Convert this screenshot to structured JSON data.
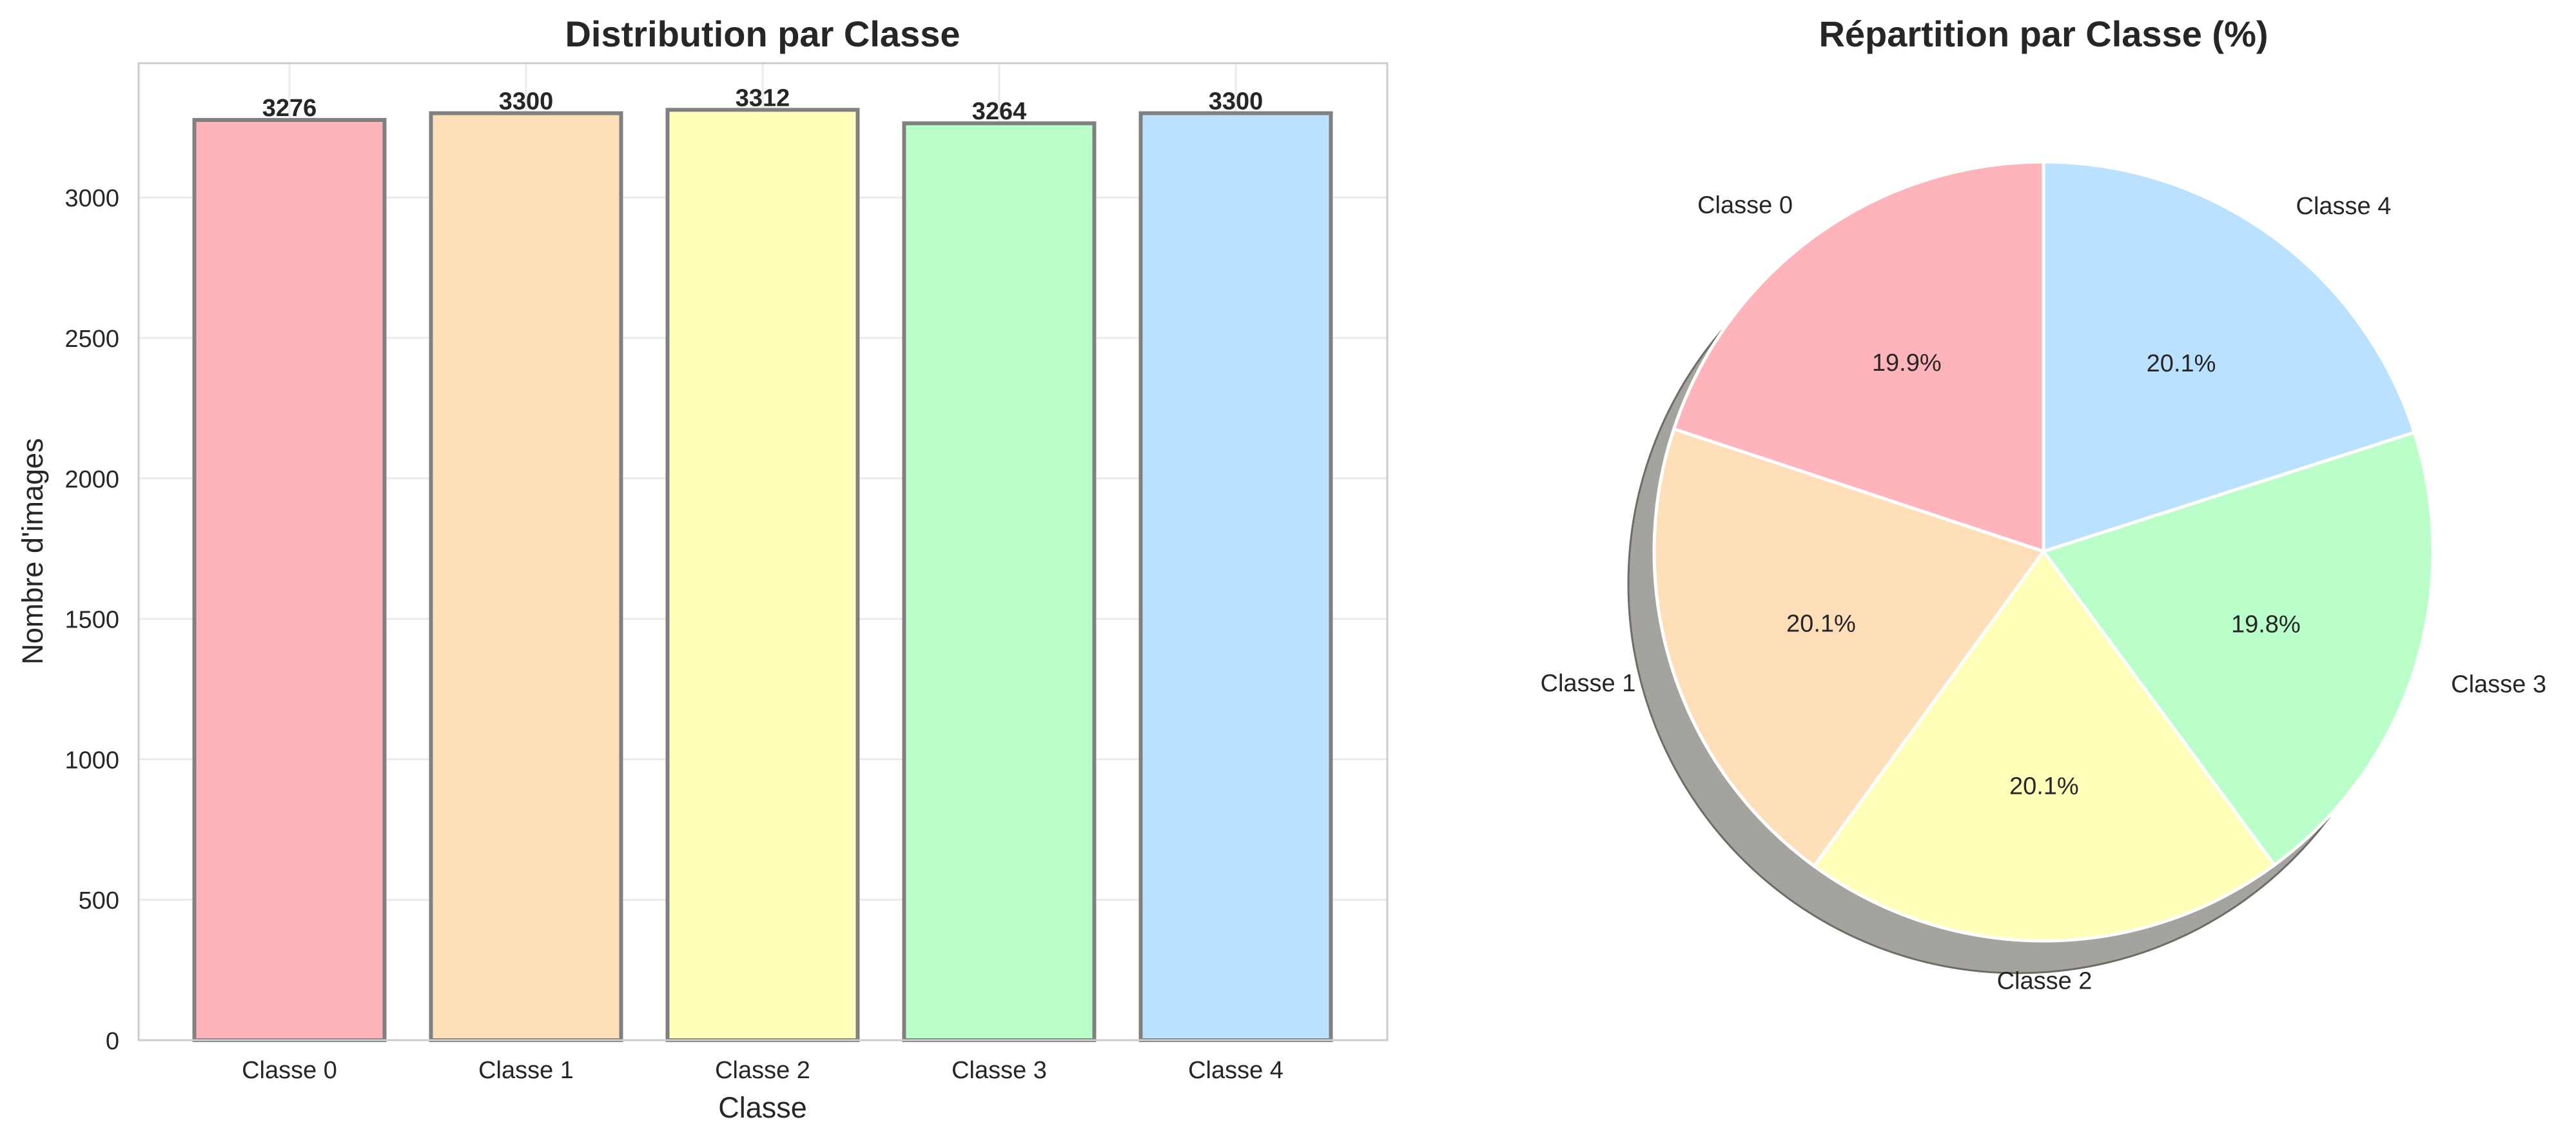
{
  "chart_data": [
    {
      "type": "bar",
      "title": "Distribution par Classe",
      "xlabel": "Classe",
      "ylabel": "Nombre d'images",
      "categories": [
        "Classe 0",
        "Classe 1",
        "Classe 2",
        "Classe 3",
        "Classe 4"
      ],
      "values": [
        3276,
        3300,
        3312,
        3264,
        3300
      ],
      "value_labels": [
        "3276",
        "3300",
        "3312",
        "3264",
        "3300"
      ],
      "colors": [
        "#ffb3ba",
        "#ffdfba",
        "#ffffba",
        "#baffc9",
        "#bae1ff"
      ],
      "edge_color": "#808080",
      "ylim": [
        0,
        3478
      ],
      "yticks": [
        0,
        500,
        1000,
        1500,
        2000,
        2500,
        3000
      ],
      "ytick_labels": [
        "0",
        "500",
        "1000",
        "1500",
        "2000",
        "2500",
        "3000"
      ],
      "grid": true,
      "legend": null
    },
    {
      "type": "pie",
      "title": "Répartition par Classe (%)",
      "labels": [
        "Classe 0",
        "Classe 1",
        "Classe 2",
        "Classe 3",
        "Classe 4"
      ],
      "values": [
        3276,
        3300,
        3312,
        3264,
        3300
      ],
      "percent_labels": [
        "19.9%",
        "20.1%",
        "20.1%",
        "19.8%",
        "20.1%"
      ],
      "colors": [
        "#ffb3ba",
        "#ffdfba",
        "#ffffba",
        "#baffc9",
        "#bae1ff"
      ],
      "start_angle": 90,
      "shadow": true,
      "wedge_edge_color": "#ffffff"
    }
  ]
}
